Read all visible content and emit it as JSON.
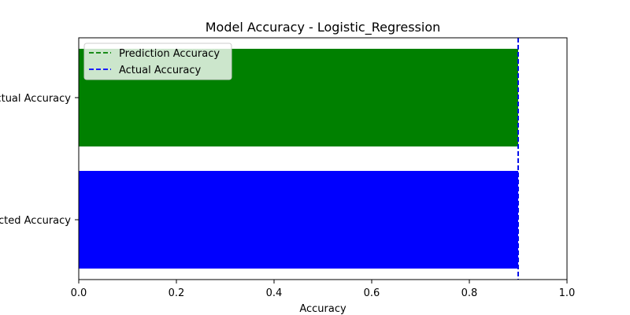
{
  "chart_data": {
    "type": "bar",
    "orientation": "horizontal",
    "title": "Model Accuracy - Logistic_Regression",
    "xlabel": "Accuracy",
    "ylabel": "",
    "xlim": [
      0,
      1
    ],
    "x_ticks": [
      "0.0",
      "0.2",
      "0.4",
      "0.6",
      "0.8",
      "1.0"
    ],
    "categories": [
      "Predicted Accuracy",
      "Actual Accuracy"
    ],
    "values": [
      0.9,
      0.9
    ],
    "bar_colors": [
      "#0000ff",
      "#008000"
    ],
    "reference_lines": [
      {
        "name": "Prediction Accuracy",
        "value": 0.9,
        "color": "#008000",
        "style": "dashed"
      },
      {
        "name": "Actual Accuracy",
        "value": 0.9,
        "color": "#0000ff",
        "style": "dashed"
      }
    ],
    "legend": {
      "position": "top-left",
      "entries": [
        "Prediction Accuracy",
        "Actual Accuracy"
      ]
    },
    "grid": false
  }
}
